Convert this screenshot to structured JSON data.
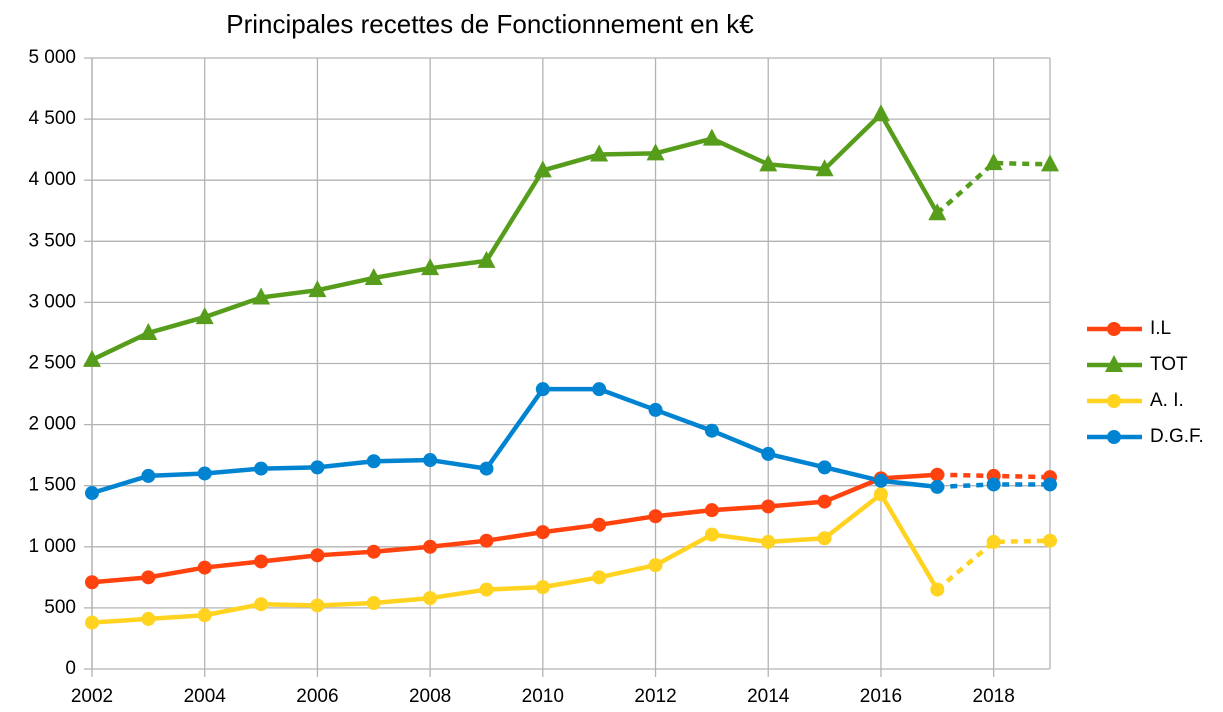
{
  "chart_data": {
    "type": "line",
    "title": "Principales recettes de Fonctionnement en k€",
    "x": [
      2002,
      2003,
      2004,
      2005,
      2006,
      2007,
      2008,
      2009,
      2010,
      2011,
      2012,
      2013,
      2014,
      2015,
      2016,
      2017,
      2018,
      2019
    ],
    "xlim": [
      2002,
      2019
    ],
    "xticks": [
      2002,
      2004,
      2006,
      2008,
      2010,
      2012,
      2014,
      2016,
      2018
    ],
    "ylim": [
      0,
      5000
    ],
    "yticks": [
      0,
      500,
      {
        "value": 1000,
        "label": "1 000"
      },
      {
        "value": 1500,
        "label": "1 500"
      },
      {
        "value": 2000,
        "label": "2 000"
      },
      {
        "value": 2500,
        "label": "2 500"
      },
      {
        "value": 3000,
        "label": "3 000"
      },
      {
        "value": 3500,
        "label": "3 500"
      },
      {
        "value": 4000,
        "label": "4 000"
      },
      {
        "value": 4500,
        "label": "4 500"
      },
      {
        "value": 5000,
        "label": "5 000"
      }
    ],
    "grid": true,
    "legend": "right",
    "dash_from": 2017,
    "series": [
      {
        "name": "I.L",
        "color": "#ff420e",
        "marker": "circle",
        "values": [
          710,
          750,
          830,
          880,
          930,
          960,
          1000,
          1050,
          1120,
          1180,
          1250,
          1300,
          1330,
          1370,
          1560,
          1590,
          1580,
          1570
        ]
      },
      {
        "name": "TOT",
        "color": "#579d1c",
        "marker": "triangle",
        "values": [
          2530,
          2750,
          2880,
          3040,
          3100,
          3200,
          3280,
          3340,
          4080,
          4210,
          4220,
          4340,
          4130,
          4090,
          4540,
          3730,
          4140,
          4130
        ]
      },
      {
        "name": "A. I.",
        "color": "#ffd320",
        "marker": "circle",
        "values": [
          380,
          410,
          440,
          530,
          520,
          540,
          580,
          650,
          670,
          750,
          850,
          1100,
          1040,
          1070,
          1430,
          650,
          1040,
          1050
        ]
      },
      {
        "name": "D.G.F.",
        "color": "#0084d1",
        "marker": "circle",
        "values": [
          1440,
          1580,
          1600,
          1640,
          1650,
          1700,
          1710,
          1640,
          2290,
          2290,
          2120,
          1950,
          1760,
          1650,
          1540,
          1490,
          1510,
          1510
        ]
      }
    ]
  }
}
